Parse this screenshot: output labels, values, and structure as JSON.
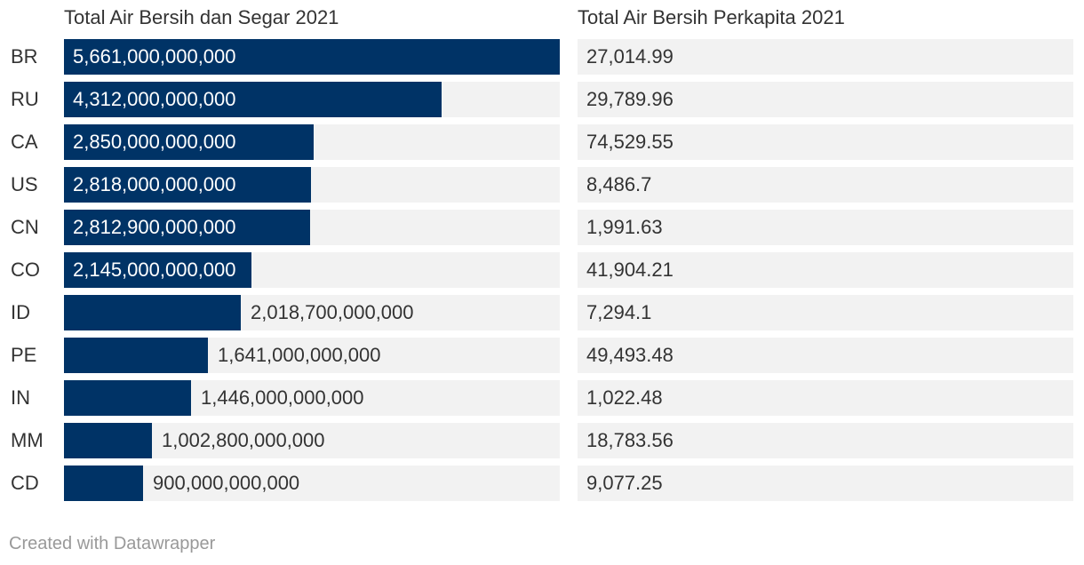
{
  "chart_data": {
    "type": "bar",
    "orientation": "horizontal",
    "title": "",
    "columns": {
      "bar_header": "Total Air Bersih dan Segar 2021",
      "value_header": "Total Air Bersih Perkapita 2021"
    },
    "categories": [
      "BR",
      "RU",
      "CA",
      "US",
      "CN",
      "CO",
      "ID",
      "PE",
      "IN",
      "MM",
      "CD"
    ],
    "values": [
      5661000000000,
      4312000000000,
      2850000000000,
      2818000000000,
      2812900000000,
      2145000000000,
      2018700000000,
      1641000000000,
      1446000000000,
      1002800000000,
      900000000000
    ],
    "value_labels": [
      "5,661,000,000,000",
      "4,312,000,000,000",
      "2,850,000,000,000",
      "2,818,000,000,000",
      "2,812,900,000,000",
      "2,145,000,000,000",
      "2,018,700,000,000",
      "1,641,000,000,000",
      "1,446,000,000,000",
      "1,002,800,000,000",
      "900,000,000,000"
    ],
    "per_capita": [
      "27,014.99",
      "29,789.96",
      "74,529.55",
      "8,486.7",
      "1,991.63",
      "41,904.21",
      "7,294.1",
      "49,493.48",
      "1,022.48",
      "18,783.56",
      "9,077.25"
    ],
    "xlim": [
      0,
      5661000000000
    ],
    "bar_color": "#003366"
  },
  "footer": "Created with Datawrapper"
}
